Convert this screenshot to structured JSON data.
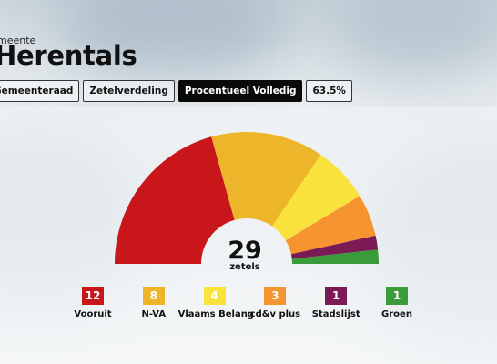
{
  "header": {
    "eyebrow": "meente",
    "title": "Herentals"
  },
  "tabs": [
    {
      "label": "Gemeenteraad",
      "active": false
    },
    {
      "label": "Zetelverdeling",
      "active": false
    },
    {
      "label": "Procentueel Volledig",
      "active": true
    },
    {
      "label": "63.5%",
      "active": false
    }
  ],
  "chart_data": {
    "type": "pie",
    "variant": "semicircle-parliament",
    "center_value": "29",
    "center_label": "zetels",
    "series": [
      {
        "name": "Vooruit",
        "value": 12,
        "color": "#c8161a"
      },
      {
        "name": "N-VA",
        "value": 8,
        "color": "#ecb52a"
      },
      {
        "name": "Vlaams Belang",
        "value": 4,
        "color": "#f9e23c"
      },
      {
        "name": "cd&v plus",
        "value": 3,
        "color": "#f6952f"
      },
      {
        "name": "Stadslijst",
        "value": 1,
        "color": "#7b1a54"
      },
      {
        "name": "Groen",
        "value": 1,
        "color": "#3a9b3a"
      }
    ]
  }
}
